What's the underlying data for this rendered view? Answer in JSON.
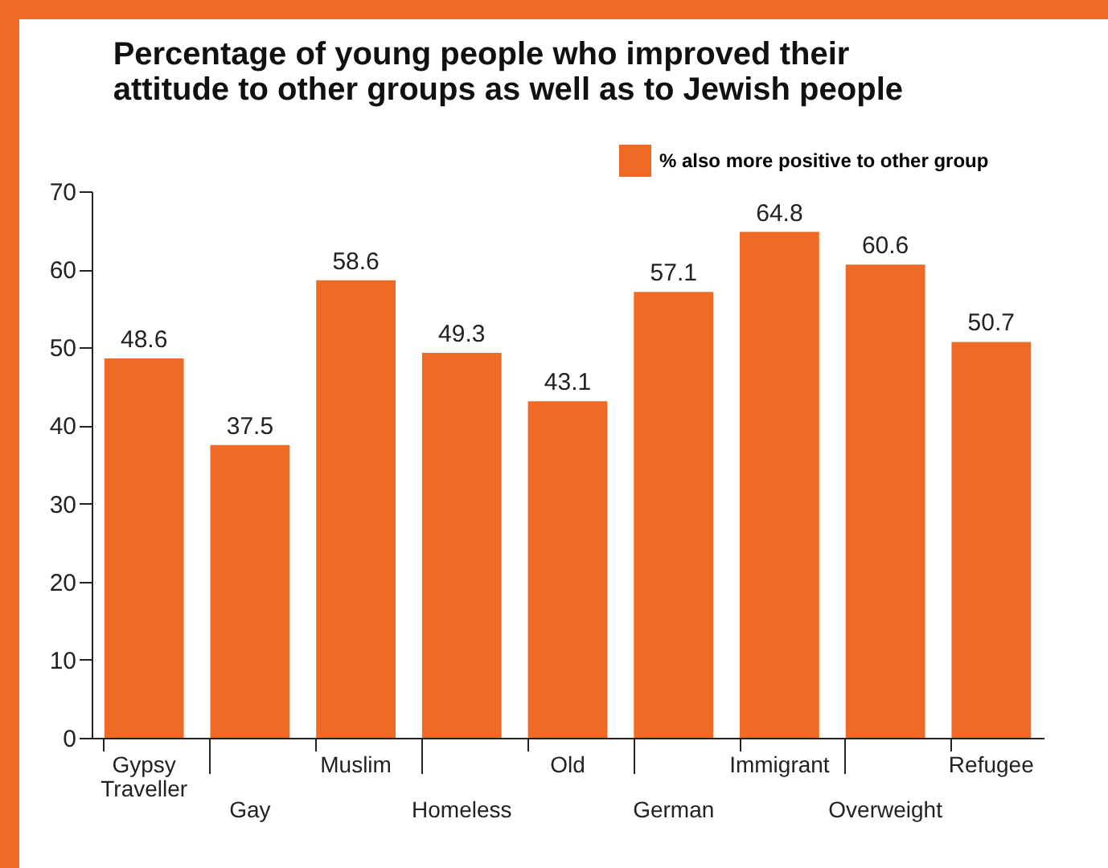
{
  "chart_data": {
    "type": "bar",
    "title": "Percentage of young people who improved their attitude to other groups as well as to Jewish people",
    "categories": [
      "Gypsy Traveller",
      "Gay",
      "Muslim",
      "Homeless",
      "Old",
      "German",
      "Immigrant",
      "Overweight",
      "Refugee"
    ],
    "series": [
      {
        "name": "% also more positive to other group",
        "color": "#ef6a24",
        "values": [
          48.6,
          37.5,
          58.6,
          49.3,
          43.1,
          57.1,
          64.8,
          60.6,
          50.7
        ]
      }
    ],
    "ylim": [
      0,
      70
    ],
    "yticks": [
      0,
      10,
      20,
      30,
      40,
      50,
      60,
      70
    ],
    "grid": false,
    "legend": "top right",
    "data_labels": true
  }
}
